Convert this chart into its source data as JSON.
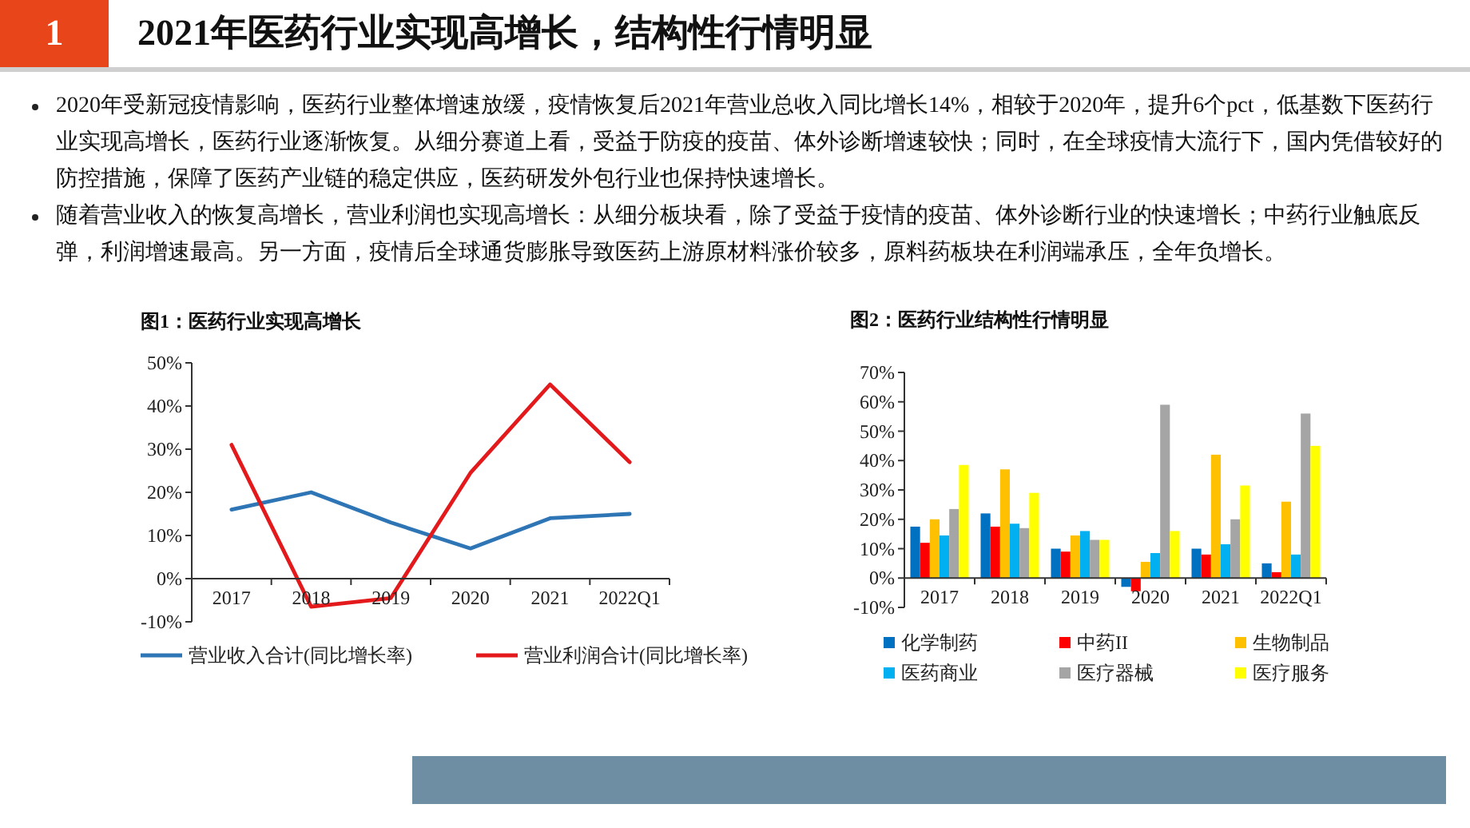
{
  "chart_data": [
    {
      "type": "other",
      "title": "2021年医药行业实现高增长，结构性行情明显",
      "annotations": [
        "1",
        "2020年受新冠疫情影响，医药行业整体增速放缓，疫情恢复后2021年营业总收入同比增长14%，相较于2020年，提升6个pct，低基数下医药行业实现高增长，医药行业逐渐恢复。从细分赛道上看，受益于防疫的疫苗、体外诊断增速较快；同时，在全球疫情大流行下，国内凭借较好的防控措施，保障了医药产业链的稳定供应，医药研发外包行业也保持快速增长。",
        "随着营业收入的恢复高增长，营业利润也实现高增长：从细分板块看，除了受益于疫情的疫苗、体外诊断行业的快速增长；中药行业触底反弹，利润增速最高。另一方面，疫情后全球通货膨胀导致医药上游原材料涨价较多，原料药板块在利润端承压，全年负增长。"
      ]
    },
    {
      "type": "line",
      "title": "图1：医药行业实现高增长",
      "categories": [
        "2017",
        "2018",
        "2019",
        "2020",
        "2021",
        "2022Q1"
      ],
      "series": [
        {
          "name": "营业收入合计(同比增长率)",
          "color": "#2e75b6",
          "values": [
            16,
            20,
            13,
            7,
            14,
            15
          ]
        },
        {
          "name": "营业利润合计(同比增长率)",
          "color": "#e3191c",
          "values": [
            31,
            -6.5,
            -4.5,
            24.5,
            45,
            27
          ]
        }
      ],
      "ylim": [
        -10,
        50
      ],
      "yticks": [
        {
          "value": -10,
          "label": "-10%"
        },
        {
          "value": 0,
          "label": "0%"
        },
        {
          "value": 10,
          "label": "10%"
        },
        {
          "value": 20,
          "label": "20%"
        },
        {
          "value": 30,
          "label": "30%"
        },
        {
          "value": 40,
          "label": "40%"
        },
        {
          "value": 50,
          "label": "50%"
        }
      ],
      "legend": "bottom"
    },
    {
      "type": "bar",
      "title": "图2：医药行业结构性行情明显",
      "categories": [
        "2017",
        "2018",
        "2019",
        "2020",
        "2021",
        "2022Q1"
      ],
      "series": [
        {
          "name": "化学制药",
          "color": "#0070c0",
          "values": [
            17.5,
            22,
            10,
            -3,
            10,
            5
          ]
        },
        {
          "name": "中药II",
          "color": "#ff0000",
          "values": [
            12,
            17.5,
            9,
            -4.5,
            8,
            2
          ]
        },
        {
          "name": "生物制品",
          "color": "#ffc000",
          "values": [
            20,
            37,
            14.5,
            5.5,
            42,
            26
          ]
        },
        {
          "name": "医药商业",
          "color": "#00b0f0",
          "values": [
            14.5,
            18.5,
            16,
            8.5,
            11.5,
            8
          ]
        },
        {
          "name": "医疗器械",
          "color": "#a5a5a5",
          "values": [
            23.5,
            17,
            13,
            59,
            20,
            56
          ]
        },
        {
          "name": "医疗服务",
          "color": "#ffff00",
          "values": [
            38.5,
            29,
            13,
            16,
            31.5,
            45
          ]
        }
      ],
      "ylim": [
        -10,
        70
      ],
      "yticks": [
        {
          "value": -10,
          "label": "-10%"
        },
        {
          "value": 0,
          "label": "0%"
        },
        {
          "value": 10,
          "label": "10%"
        },
        {
          "value": 20,
          "label": "20%"
        },
        {
          "value": 30,
          "label": "30%"
        },
        {
          "value": 40,
          "label": "40%"
        },
        {
          "value": 50,
          "label": "50%"
        },
        {
          "value": 60,
          "label": "60%"
        },
        {
          "value": 70,
          "label": "70%"
        }
      ],
      "legend": "bottom"
    }
  ]
}
